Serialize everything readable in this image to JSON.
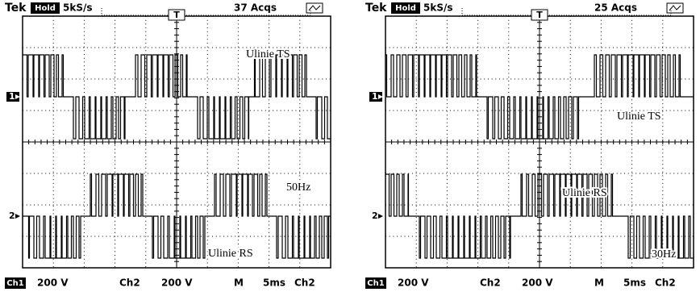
{
  "panels": [
    {
      "header": {
        "brand": "Tek",
        "mode": "Hold",
        "sample_rate": "5kS/s",
        "trigger": "T",
        "acquisitions": "37 Acqs"
      },
      "channel_markers": [
        "1",
        "2"
      ],
      "annotations": [
        "Ulinie TS",
        "50Hz",
        "Ulinie RS"
      ],
      "footer": {
        "ch1": "Ch1",
        "ch1_scale": "200 V",
        "ch2": "Ch2",
        "ch2_scale": "200 V",
        "timebase_label": "M",
        "timebase": "5ms",
        "trigger_source": "Ch2"
      }
    },
    {
      "header": {
        "brand": "Tek",
        "mode": "Hold",
        "sample_rate": "5kS/s",
        "trigger": "T",
        "acquisitions": "25 Acqs"
      },
      "channel_markers": [
        "1",
        "2"
      ],
      "annotations": [
        "Ulinie TS",
        "Ulinie RS",
        "30Hz"
      ],
      "footer": {
        "ch1": "Ch1",
        "ch1_scale": "200 V",
        "ch2": "Ch2",
        "ch2_scale": "200 V",
        "timebase_label": "M",
        "timebase": "5ms",
        "trigger_source": "Ch2"
      }
    }
  ]
}
